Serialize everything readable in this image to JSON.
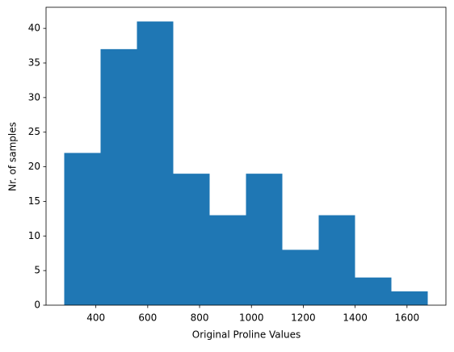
{
  "chart_data": {
    "type": "histogram",
    "xlabel": "Original Proline Values",
    "ylabel": "Nr. of samples",
    "bins": [
      278,
      418.2,
      558.4,
      698.6,
      838.8,
      979,
      1119.2,
      1259.4,
      1399.6,
      1539.8,
      1680
    ],
    "values": [
      22,
      37,
      41,
      19,
      13,
      19,
      8,
      13,
      4,
      2
    ],
    "color": "#1f77b4",
    "xlim": [
      207.9,
      1750.1
    ],
    "xticks": [
      400,
      600,
      800,
      1000,
      1200,
      1400,
      1600
    ],
    "ylim": [
      0,
      43.05
    ],
    "yticks": [
      0,
      5,
      10,
      15,
      20,
      25,
      30,
      35,
      40
    ]
  }
}
